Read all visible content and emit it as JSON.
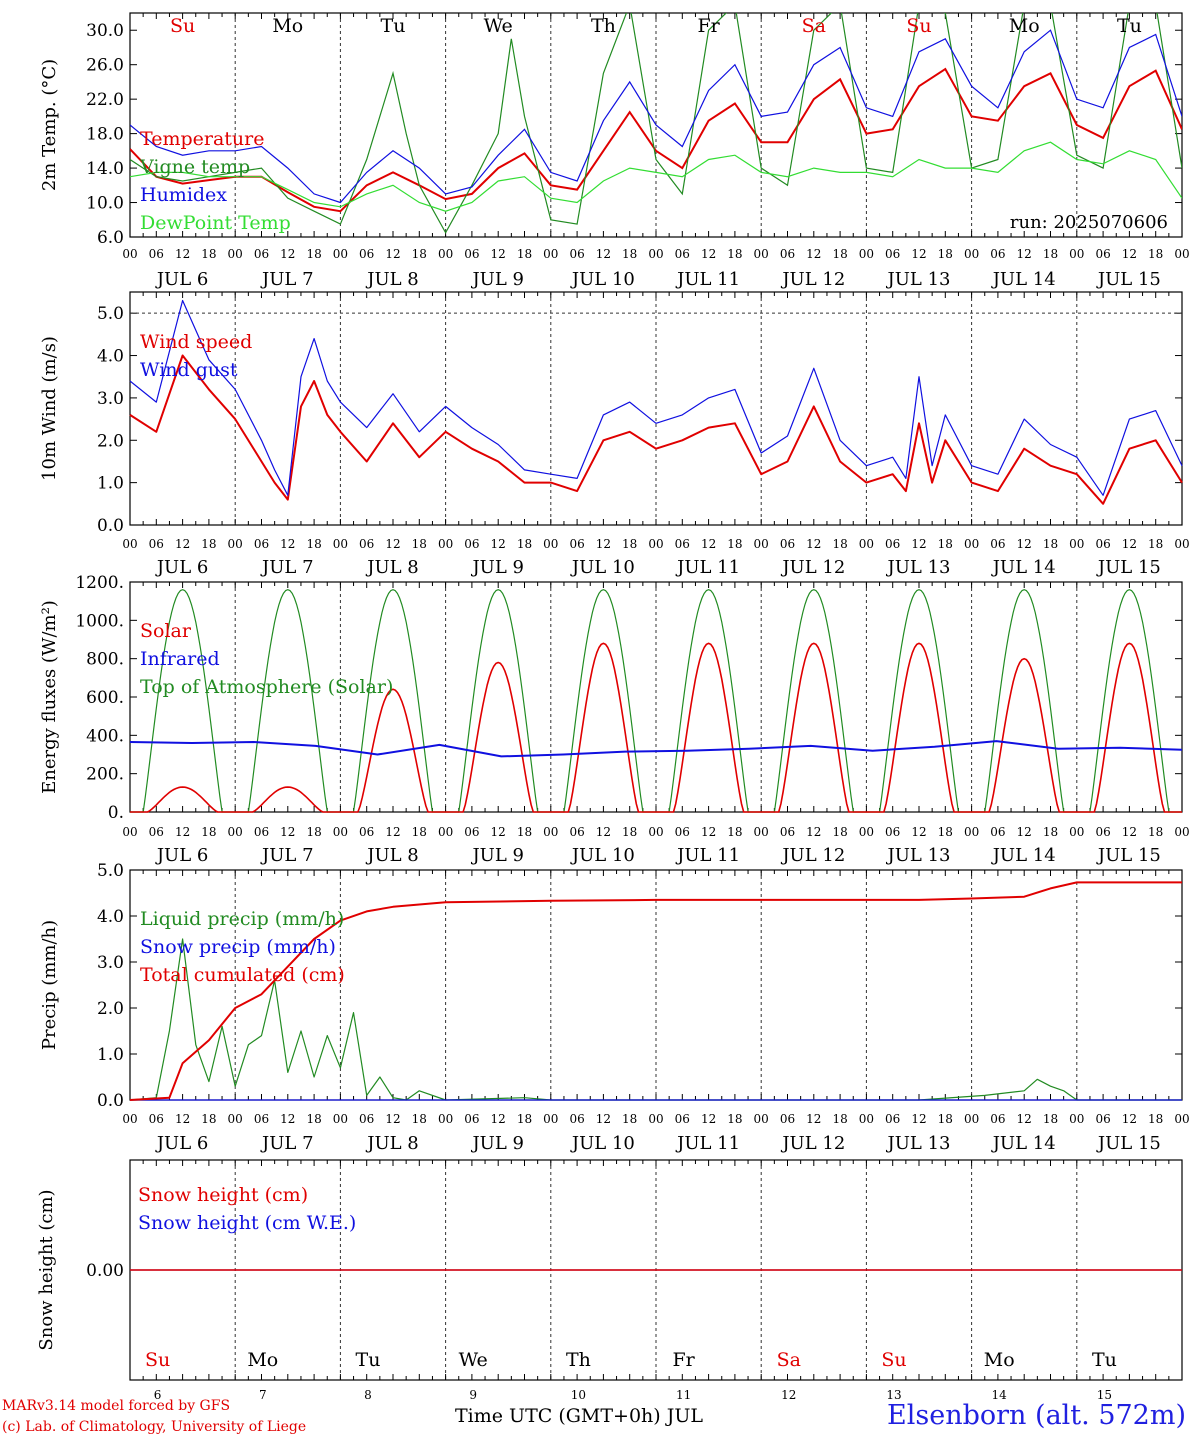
{
  "footer": {
    "model_line": "MARv3.14 model forced by GFS",
    "credit_line": "(c) Lab. of Climatology, University of Liege",
    "station": "Elsenborn (alt. 572m)",
    "x_title": "Time UTC (GMT+0h) JUL"
  },
  "colors": {
    "red": "#e00000",
    "green": "#228b22",
    "blue": "#1010e0",
    "lightgreen": "#33dd33",
    "black": "#000000"
  },
  "chart_data": [
    {
      "type": "line",
      "ylabel": "2m Temp. (°C)",
      "ylim": [
        6.0,
        32.0
      ],
      "yticks": [
        "6.0",
        "10.0",
        "14.0",
        "18.0",
        "22.0",
        "26.0",
        "30.0"
      ],
      "x_unit": "hours since JUL 6 00 UTC",
      "xlim": [
        0,
        240
      ],
      "day_names": [
        "Su",
        "Mo",
        "Tu",
        "We",
        "Th",
        "Fr",
        "Sa",
        "Su",
        "Mo",
        "Tu"
      ],
      "day_name_colors": [
        "red",
        "black",
        "black",
        "black",
        "black",
        "black",
        "red",
        "red",
        "black",
        "black"
      ],
      "date_labels": [
        "JUL  6",
        "JUL  7",
        "JUL  8",
        "JUL  9",
        "JUL 10",
        "JUL 11",
        "JUL 12",
        "JUL 13",
        "JUL 14",
        "JUL 15"
      ],
      "hour_ticks": [
        "00",
        "06",
        "12",
        "18"
      ],
      "annotation": "run: 2025070606",
      "series": [
        {
          "name": "Temperature",
          "color": "red",
          "x": [
            0,
            6,
            12,
            18,
            24,
            30,
            36,
            42,
            48,
            54,
            60,
            66,
            72,
            78,
            84,
            90,
            96,
            102,
            108,
            114,
            120,
            126,
            132,
            138,
            144,
            150,
            156,
            162,
            168,
            174,
            180,
            186,
            192,
            198,
            204,
            210,
            216,
            222,
            228,
            234,
            240
          ],
          "y": [
            16.2,
            13.0,
            12.2,
            12.6,
            13.0,
            13.0,
            11.2,
            9.5,
            9.0,
            12.0,
            13.5,
            12.0,
            10.4,
            11.0,
            14.0,
            15.7,
            12.0,
            11.5,
            16.0,
            20.5,
            16.0,
            14.0,
            19.5,
            21.5,
            17.0,
            17.0,
            22.0,
            24.3,
            18.0,
            18.5,
            23.5,
            25.5,
            20.0,
            19.5,
            23.5,
            25.0,
            19.0,
            17.5,
            23.5,
            25.3,
            18.5
          ]
        },
        {
          "name": "Vigne temp",
          "color": "green",
          "x": [
            0,
            6,
            12,
            18,
            24,
            30,
            36,
            42,
            48,
            54,
            60,
            63,
            66,
            72,
            78,
            84,
            87,
            90,
            96,
            102,
            108,
            114,
            120,
            126,
            132,
            138,
            144,
            150,
            156,
            162,
            168,
            174,
            180,
            186,
            192,
            198,
            204,
            210,
            216,
            222,
            228,
            234,
            240
          ],
          "y": [
            15.0,
            13.0,
            12.5,
            13.0,
            13.5,
            14.0,
            10.5,
            9.0,
            7.5,
            15.0,
            25.0,
            18.0,
            12.0,
            6.5,
            12.0,
            18.0,
            29.0,
            20.0,
            8.0,
            7.5,
            25.0,
            33.0,
            15.0,
            11.0,
            30.0,
            33.0,
            14.0,
            12.0,
            30.0,
            33.0,
            14.0,
            13.5,
            33.0,
            32.0,
            14.0,
            15.0,
            33.0,
            33.0,
            15.5,
            14.0,
            33.0,
            33.0,
            14.0
          ]
        },
        {
          "name": "Humidex",
          "color": "blue",
          "x": [
            0,
            6,
            12,
            18,
            24,
            30,
            36,
            42,
            48,
            54,
            60,
            66,
            72,
            78,
            84,
            90,
            96,
            102,
            108,
            114,
            120,
            126,
            132,
            138,
            144,
            150,
            156,
            162,
            168,
            174,
            180,
            186,
            192,
            198,
            204,
            210,
            216,
            222,
            228,
            234,
            240
          ],
          "y": [
            19.0,
            16.5,
            15.5,
            16.0,
            16.0,
            16.5,
            14.0,
            11.0,
            10.0,
            13.5,
            16.0,
            14.0,
            11.0,
            11.8,
            15.5,
            18.5,
            13.5,
            12.5,
            19.5,
            24.0,
            19.0,
            16.5,
            23.0,
            26.0,
            20.0,
            20.5,
            26.0,
            28.0,
            21.0,
            20.0,
            27.5,
            29.0,
            23.5,
            21.0,
            27.5,
            30.0,
            22.0,
            21.0,
            28.0,
            29.5,
            20.0
          ]
        },
        {
          "name": "DewPoint Temp",
          "color": "lightgreen",
          "x": [
            0,
            6,
            12,
            18,
            24,
            30,
            36,
            42,
            48,
            54,
            60,
            66,
            72,
            78,
            84,
            90,
            96,
            102,
            108,
            114,
            120,
            126,
            132,
            138,
            144,
            150,
            156,
            162,
            168,
            174,
            180,
            186,
            192,
            198,
            204,
            210,
            216,
            222,
            228,
            234,
            240
          ],
          "y": [
            13.0,
            13.5,
            13.5,
            13.0,
            13.0,
            13.0,
            11.5,
            10.0,
            9.5,
            11.0,
            12.0,
            10.0,
            9.0,
            10.0,
            12.5,
            13.0,
            10.5,
            10.0,
            12.5,
            14.0,
            13.5,
            13.0,
            15.0,
            15.5,
            13.5,
            13.0,
            14.0,
            13.5,
            13.5,
            13.0,
            15.0,
            14.0,
            14.0,
            13.5,
            16.0,
            17.0,
            15.0,
            14.5,
            16.0,
            15.0,
            10.5
          ]
        }
      ]
    },
    {
      "type": "line",
      "ylabel": "10m Wind (m/s)",
      "ylim": [
        0.0,
        5.5
      ],
      "yticks": [
        "0.0",
        "1.0",
        "2.0",
        "3.0",
        "4.0",
        "5.0"
      ],
      "xlim": [
        0,
        240
      ],
      "hour_ticks": [
        "00",
        "06",
        "12",
        "18"
      ],
      "date_labels": [
        "JUL  6",
        "JUL  7",
        "JUL  8",
        "JUL  9",
        "JUL 10",
        "JUL 11",
        "JUL 12",
        "JUL 13",
        "JUL 14",
        "JUL 15"
      ],
      "series": [
        {
          "name": "Wind speed",
          "color": "red",
          "x": [
            0,
            6,
            12,
            18,
            24,
            30,
            33,
            36,
            39,
            42,
            45,
            48,
            54,
            60,
            66,
            72,
            78,
            84,
            90,
            96,
            102,
            108,
            114,
            120,
            126,
            132,
            138,
            144,
            150,
            156,
            162,
            168,
            174,
            177,
            180,
            183,
            186,
            192,
            198,
            204,
            210,
            216,
            222,
            228,
            234,
            240
          ],
          "y": [
            2.6,
            2.2,
            4.0,
            3.2,
            2.5,
            1.5,
            1.0,
            0.6,
            2.8,
            3.4,
            2.6,
            2.2,
            1.5,
            2.4,
            1.6,
            2.2,
            1.8,
            1.5,
            1.0,
            1.0,
            0.8,
            2.0,
            2.2,
            1.8,
            2.0,
            2.3,
            2.4,
            1.2,
            1.5,
            2.8,
            1.5,
            1.0,
            1.2,
            0.8,
            2.4,
            1.0,
            2.0,
            1.0,
            0.8,
            1.8,
            1.4,
            1.2,
            0.5,
            1.8,
            2.0,
            1.0
          ]
        },
        {
          "name": "Wind gust",
          "color": "blue",
          "x": [
            0,
            6,
            12,
            18,
            24,
            30,
            33,
            36,
            39,
            42,
            45,
            48,
            54,
            60,
            66,
            72,
            78,
            84,
            90,
            96,
            102,
            108,
            114,
            120,
            126,
            132,
            138,
            144,
            150,
            156,
            162,
            168,
            174,
            177,
            180,
            183,
            186,
            192,
            198,
            204,
            210,
            216,
            222,
            228,
            234,
            240
          ],
          "y": [
            3.4,
            2.9,
            5.3,
            3.9,
            3.2,
            2.0,
            1.3,
            0.7,
            3.5,
            4.4,
            3.4,
            2.9,
            2.3,
            3.1,
            2.2,
            2.8,
            2.3,
            1.9,
            1.3,
            1.2,
            1.1,
            2.6,
            2.9,
            2.4,
            2.6,
            3.0,
            3.2,
            1.7,
            2.1,
            3.7,
            2.0,
            1.4,
            1.6,
            1.1,
            3.5,
            1.4,
            2.6,
            1.4,
            1.2,
            2.5,
            1.9,
            1.6,
            0.7,
            2.5,
            2.7,
            1.4
          ]
        }
      ]
    },
    {
      "type": "line",
      "ylabel": "Energy fluxes (W/m²)",
      "ylim": [
        0,
        1200
      ],
      "yticks": [
        "0.",
        "200.",
        "400.",
        "600.",
        "800.",
        "1000.",
        "1200."
      ],
      "xlim": [
        0,
        240
      ],
      "hour_ticks": [
        "00",
        "06",
        "12",
        "18"
      ],
      "date_labels": [
        "JUL  6",
        "JUL  7",
        "JUL  8",
        "JUL  9",
        "JUL 10",
        "JUL 11",
        "JUL 12",
        "JUL 13",
        "JUL 14",
        "JUL 15"
      ],
      "daily_solar_peaks": [
        130,
        130,
        640,
        780,
        880,
        880,
        880,
        880,
        800,
        880
      ],
      "toa_peak": 1160,
      "infrared_values": [
        365,
        360,
        365,
        345,
        300,
        350,
        290,
        300,
        315,
        320,
        330,
        345,
        320,
        340,
        370,
        330,
        335,
        325
      ],
      "series": [
        {
          "name": "Solar",
          "color": "red"
        },
        {
          "name": "Infrared",
          "color": "blue"
        },
        {
          "name": "Top of Atmosphere (Solar)",
          "color": "green"
        }
      ]
    },
    {
      "type": "line",
      "ylabel": "Precip (mm/h)",
      "ylim": [
        0.0,
        5.0
      ],
      "yticks": [
        "0.0",
        "1.0",
        "2.0",
        "3.0",
        "4.0",
        "5.0"
      ],
      "xlim": [
        0,
        240
      ],
      "hour_ticks": [
        "00",
        "06",
        "12",
        "18"
      ],
      "date_labels": [
        "JUL  6",
        "JUL  7",
        "JUL  8",
        "JUL  9",
        "JUL 10",
        "JUL 11",
        "JUL 12",
        "JUL 13",
        "JUL 14",
        "JUL 15"
      ],
      "series": [
        {
          "name": "Liquid precip (mm/h)",
          "color": "green",
          "x": [
            0,
            6,
            9,
            12,
            15,
            18,
            21,
            24,
            27,
            30,
            33,
            36,
            39,
            42,
            45,
            48,
            51,
            54,
            57,
            60,
            63,
            66,
            72,
            90,
            96,
            180,
            195,
            204,
            207,
            210,
            213,
            216,
            240
          ],
          "y": [
            0.0,
            0.05,
            1.5,
            3.5,
            1.2,
            0.4,
            1.6,
            0.3,
            1.2,
            1.4,
            2.6,
            0.6,
            1.5,
            0.5,
            1.4,
            0.7,
            1.9,
            0.1,
            0.5,
            0.05,
            0.0,
            0.2,
            0.0,
            0.05,
            0.0,
            0.0,
            0.1,
            0.2,
            0.45,
            0.3,
            0.2,
            0.0,
            0.0
          ]
        },
        {
          "name": "Snow precip (mm/h)",
          "color": "blue",
          "x": [
            0,
            240
          ],
          "y": [
            0.0,
            0.0
          ]
        },
        {
          "name": "Total cumulated (cm)",
          "color": "red",
          "x": [
            0,
            9,
            12,
            18,
            24,
            30,
            36,
            42,
            48,
            54,
            60,
            66,
            72,
            96,
            120,
            180,
            192,
            198,
            204,
            210,
            216,
            240
          ],
          "y": [
            0.0,
            0.05,
            0.8,
            1.3,
            2.0,
            2.3,
            2.9,
            3.5,
            3.9,
            4.1,
            4.2,
            4.25,
            4.3,
            4.33,
            4.35,
            4.35,
            4.38,
            4.4,
            4.42,
            4.6,
            4.73,
            4.73
          ]
        }
      ]
    },
    {
      "type": "line",
      "ylabel": "Snow height (cm)",
      "ytick": "0.00",
      "xlim": [
        0,
        240
      ],
      "bottom_day_names": [
        "Su",
        "Mo",
        "Tu",
        "We",
        "Th",
        "Fr",
        "Sa",
        "Su",
        "Mo",
        "Tu"
      ],
      "bottom_day_name_colors": [
        "red",
        "black",
        "black",
        "black",
        "black",
        "black",
        "red",
        "red",
        "black",
        "black"
      ],
      "bottom_day_numbers": [
        "6",
        "7",
        "8",
        "9",
        "10",
        "11",
        "12",
        "13",
        "14",
        "15"
      ],
      "series": [
        {
          "name": "Snow height (cm)",
          "color": "red",
          "value": 0.0
        },
        {
          "name": "Snow height (cm W.E.)",
          "color": "blue",
          "value": 0.0
        }
      ]
    }
  ]
}
